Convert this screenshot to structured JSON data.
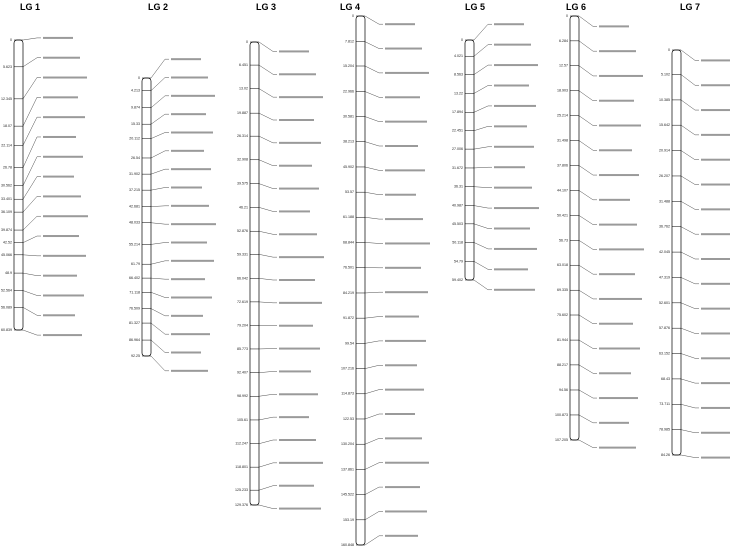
{
  "groups": [
    {
      "label": "LG 1",
      "positions": [
        0.0,
        5.623,
        12.345,
        18.07,
        22.114,
        26.78,
        30.562,
        33.401,
        36.109,
        39.874,
        42.52,
        45.066,
        48.9,
        52.564,
        56.089,
        60.839
      ]
    },
    {
      "label": "LG 2",
      "positions": [
        0.0,
        4.213,
        9.874,
        15.33,
        20.112,
        26.54,
        31.902,
        37.215,
        42.681,
        48.033,
        55.214,
        61.79,
        66.402,
        71.118,
        76.509,
        81.327,
        86.964,
        92.25
      ]
    },
    {
      "label": "LG 3",
      "positions": [
        0.0,
        6.451,
        13.02,
        19.887,
        26.314,
        32.908,
        39.575,
        46.21,
        52.876,
        59.331,
        66.042,
        72.619,
        79.204,
        85.773,
        92.407,
        98.992,
        105.61,
        112.247,
        118.801,
        125.233,
        129.376
      ]
    },
    {
      "label": "LG 4",
      "positions": [
        0.0,
        7.812,
        15.204,
        22.966,
        30.581,
        38.213,
        45.902,
        53.57,
        61.188,
        68.844,
        76.501,
        84.219,
        91.872,
        99.54,
        107.216,
        114.873,
        122.53,
        130.204,
        137.861,
        145.522,
        153.19,
        160.848
      ]
    },
    {
      "label": "LG 5",
      "positions": [
        0.0,
        4.021,
        8.563,
        13.22,
        17.894,
        22.451,
        27.006,
        31.672,
        36.31,
        40.987,
        45.503,
        50.118,
        54.79,
        59.402
      ]
    },
    {
      "label": "LG 6",
      "positions": [
        0.0,
        6.284,
        12.57,
        18.903,
        25.214,
        31.498,
        37.806,
        44.107,
        50.421,
        56.73,
        63.018,
        69.335,
        75.602,
        81.944,
        88.217,
        94.56,
        100.873,
        107.205
      ]
    },
    {
      "label": "LG 7",
      "positions": [
        0.0,
        5.102,
        10.385,
        15.642,
        20.914,
        26.207,
        31.488,
        36.762,
        42.045,
        47.319,
        52.601,
        57.876,
        63.152,
        68.43,
        73.711,
        78.985,
        84.26
      ]
    }
  ]
}
